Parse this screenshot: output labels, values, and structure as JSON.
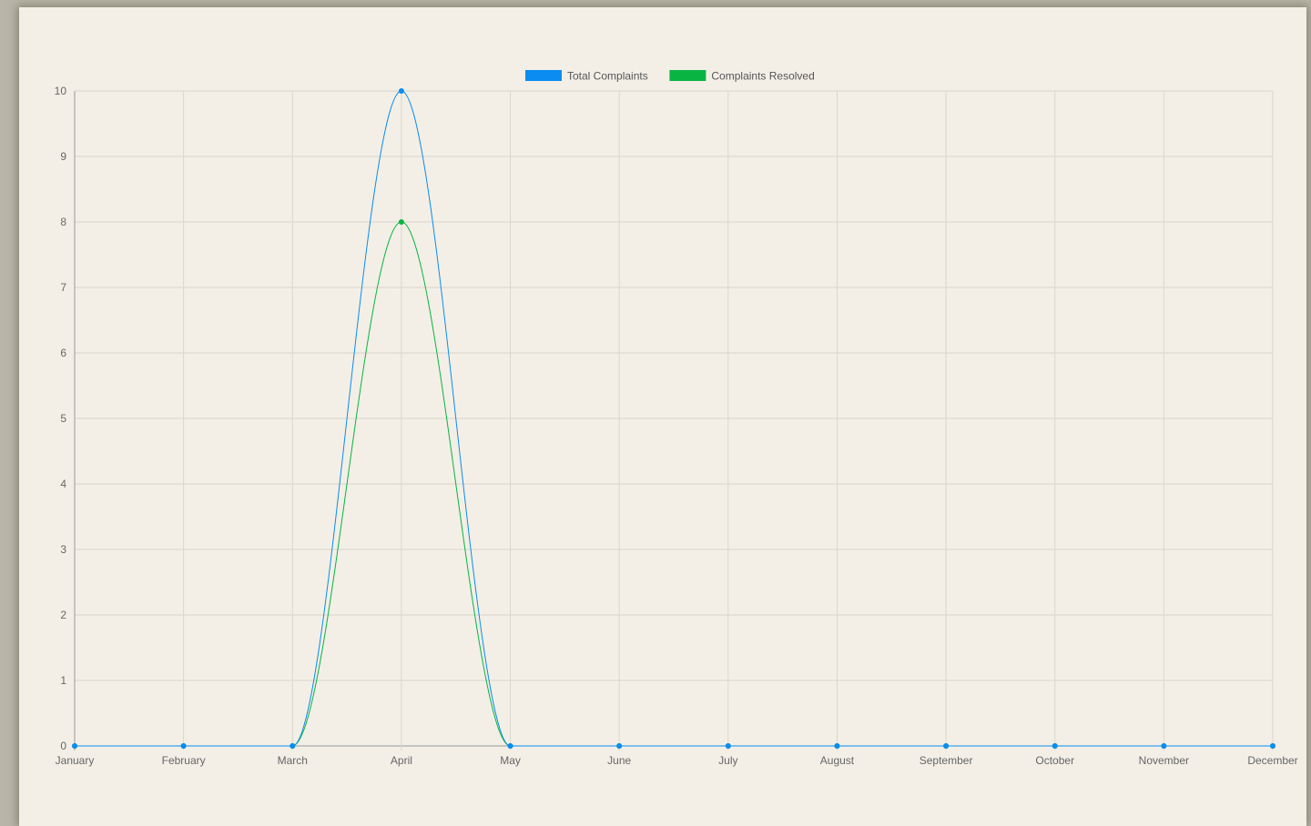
{
  "chart_data": {
    "type": "line",
    "title": "",
    "xlabel": "",
    "ylabel": "",
    "categories": [
      "January",
      "February",
      "March",
      "April",
      "May",
      "June",
      "July",
      "August",
      "September",
      "October",
      "November",
      "December"
    ],
    "series": [
      {
        "name": "Total Complaints",
        "color": "#0a8cf0",
        "values": [
          0,
          0,
          0,
          10,
          0,
          0,
          0,
          0,
          0,
          0,
          0,
          0
        ]
      },
      {
        "name": "Complaints Resolved",
        "color": "#0ab443",
        "values": [
          0,
          0,
          0,
          8,
          0,
          0,
          0,
          0,
          0,
          0,
          0,
          0
        ]
      }
    ],
    "ylim": [
      0,
      10
    ],
    "yticks": [
      0,
      1,
      2,
      3,
      4,
      5,
      6,
      7,
      8,
      9,
      10
    ],
    "grid": true,
    "legend_position": "top",
    "curve": "smooth"
  }
}
